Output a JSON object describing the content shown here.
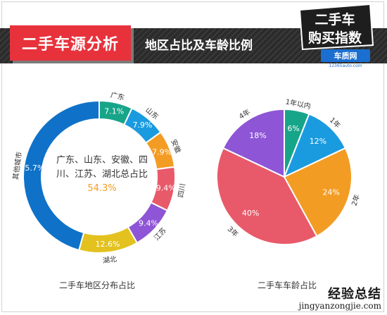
{
  "header": {
    "title": "二手车源分析",
    "subtitle": "地区占比及车龄比例"
  },
  "logo": {
    "line1": "二手车",
    "line2": "购买指数",
    "brand": "车质网",
    "url": "12365auto.com"
  },
  "watermark": {
    "cn": "经验总结",
    "en": "jingyanzongjie.com"
  },
  "chart_data": [
    {
      "type": "pie",
      "variant": "donut",
      "caption": "二手车地区分布占比",
      "center_text": {
        "prefix": "广东、山东、安徽、四川、江苏、湖北总占比",
        "highlight": "54.3%"
      },
      "categories": [
        "广东",
        "山东",
        "安徽",
        "四川",
        "江苏",
        "湖北",
        "其他城市"
      ],
      "values": [
        7.1,
        7.9,
        7.9,
        9.4,
        9.4,
        12.6,
        45.7
      ],
      "value_labels": [
        "7.1%",
        "7.9%",
        "7.9%",
        "9.4%",
        "9.4%",
        "12.6%",
        "45.7%"
      ],
      "colors": [
        "#17a589",
        "#1a9be0",
        "#f39c24",
        "#e85a6a",
        "#8e55d6",
        "#e3c21f",
        "#0f72c8"
      ]
    },
    {
      "type": "pie",
      "caption": "二手车车龄占比",
      "categories": [
        "1年以内",
        "1年",
        "2年",
        "3年",
        "4年"
      ],
      "values": [
        6,
        12,
        24,
        40,
        18
      ],
      "value_labels": [
        "6%",
        "12%",
        "24%",
        "40%",
        "18%"
      ],
      "colors": [
        "#17a589",
        "#1a9be0",
        "#f39c24",
        "#e85a6a",
        "#8e55d6"
      ]
    }
  ]
}
